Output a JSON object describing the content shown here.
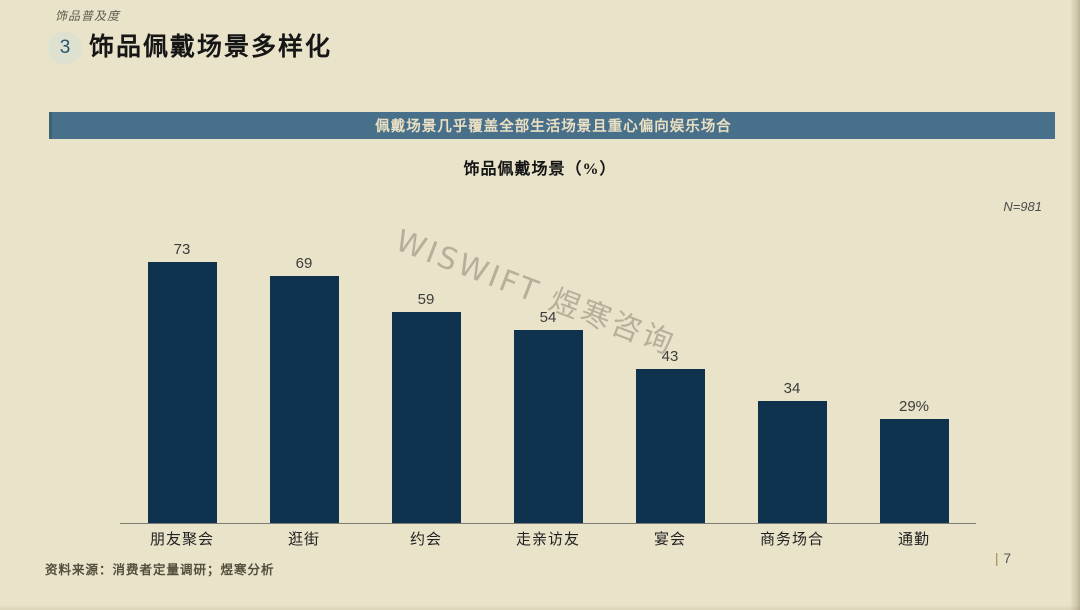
{
  "page": {
    "eyebrow": "饰品普及度",
    "section_number": "3",
    "title": "饰品佩戴场景多样化",
    "banner": "佩戴场景几乎覆盖全部生活场景且重心偏向娱乐场合",
    "sample_size": "N=981",
    "watermark": "WISWIFT 煜寒咨询",
    "source": "资料来源：消费者定量调研；煜寒分析",
    "page_number_pipe": "|",
    "page_number": "7"
  },
  "chart_data": {
    "type": "bar",
    "title": "饰品佩戴场景（%）",
    "categories": [
      "朋友聚会",
      "逛街",
      "约会",
      "走亲访友",
      "宴会",
      "商务场合",
      "通勤"
    ],
    "values": [
      73,
      69,
      59,
      54,
      43,
      34,
      29
    ],
    "value_labels": [
      "73",
      "69",
      "59",
      "54",
      "43",
      "34",
      "29%"
    ],
    "xlabel": "",
    "ylabel": "饰品佩戴场景（%）",
    "ylim": [
      0,
      80
    ],
    "grid": false,
    "legend": false,
    "bar_color": "#0f334f",
    "axis_color": "#7c7c74",
    "value_label_color": "#3c3c3c",
    "unit": "%"
  },
  "colors": {
    "background": "#e9e3ca",
    "banner_bg": "#49708a",
    "banner_text": "#e9dfc2",
    "bar": "#0f334f",
    "circle_bg": "#dfe1d0",
    "circle_text": "#27556e",
    "title_text": "#161616",
    "watermark": "#8a8575"
  }
}
